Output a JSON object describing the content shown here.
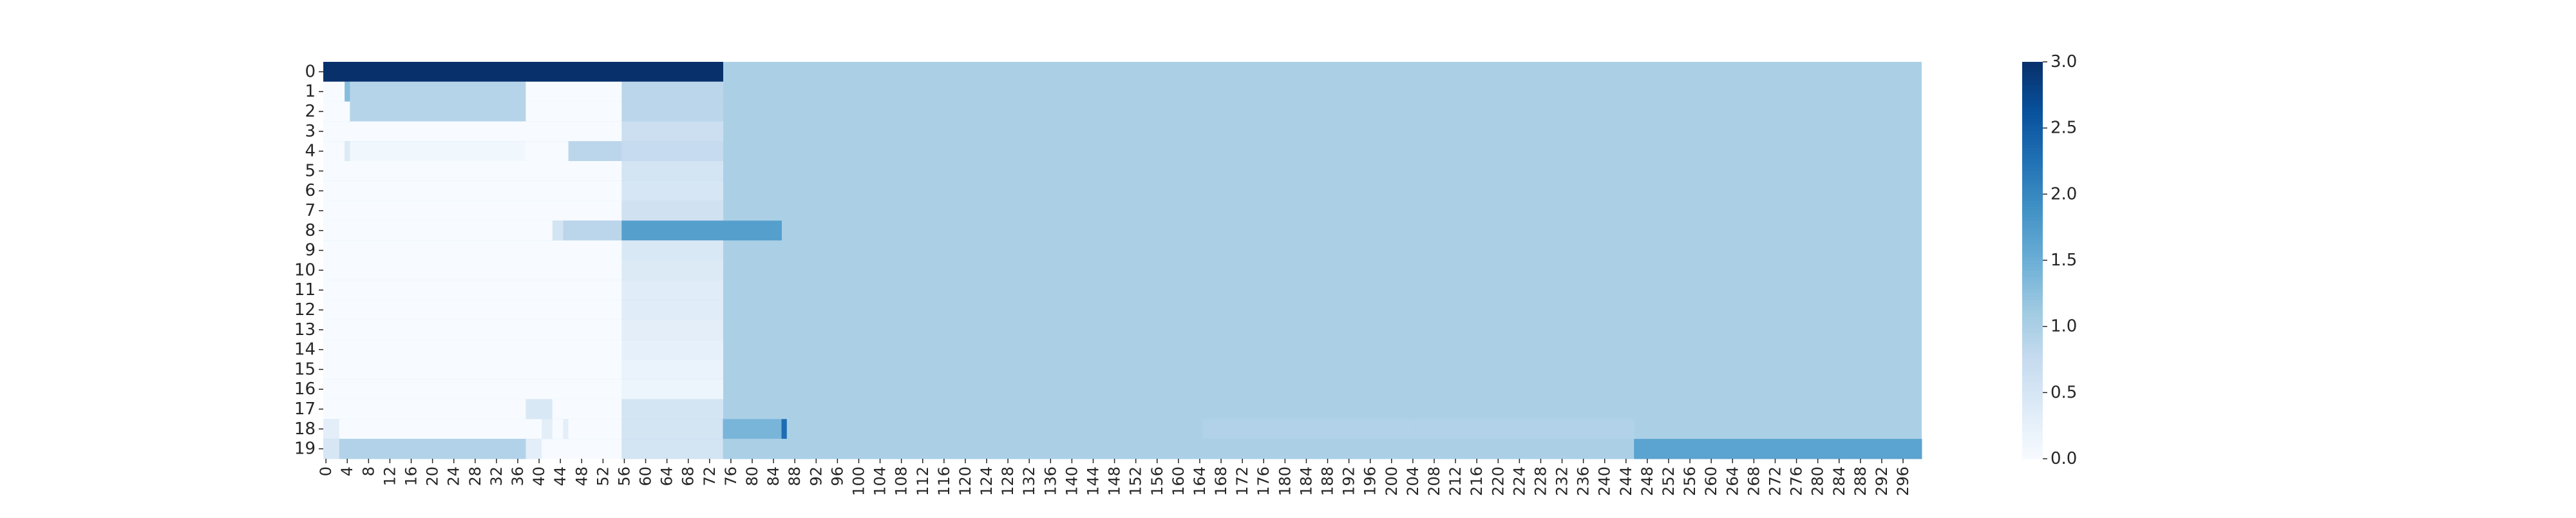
{
  "chart_data": {
    "type": "heatmap",
    "title": "",
    "xlabel": "",
    "ylabel": "",
    "n_cols": 300,
    "y_labels": [
      "0",
      "1",
      "2",
      "3",
      "4",
      "5",
      "6",
      "7",
      "8",
      "9",
      "10",
      "11",
      "12",
      "13",
      "14",
      "15",
      "16",
      "17",
      "18",
      "19"
    ],
    "x_tick_labels": [
      "0",
      "4",
      "8",
      "12",
      "16",
      "20",
      "24",
      "28",
      "32",
      "36",
      "40",
      "44",
      "48",
      "52",
      "56",
      "60",
      "64",
      "68",
      "72",
      "76",
      "80",
      "84",
      "88",
      "92",
      "96",
      "100",
      "104",
      "108",
      "112",
      "116",
      "120",
      "124",
      "128",
      "132",
      "136",
      "140",
      "144",
      "148",
      "152",
      "156",
      "160",
      "164",
      "168",
      "172",
      "176",
      "180",
      "184",
      "188",
      "192",
      "196",
      "200",
      "204",
      "208",
      "212",
      "216",
      "220",
      "224",
      "228",
      "232",
      "236",
      "240",
      "244",
      "248",
      "252",
      "256",
      "260",
      "264",
      "268",
      "272",
      "276",
      "280",
      "284",
      "288",
      "292",
      "296"
    ],
    "x_tick_step": 4,
    "colorbar": {
      "colormap": "Blues",
      "vmin": 0.0,
      "vmax": 3.0,
      "tick_labels": [
        "0.0",
        "0.5",
        "1.0",
        "1.5",
        "2.0",
        "2.5",
        "3.0"
      ]
    },
    "cells": {
      "default_value": 1.0,
      "rows": [
        [
          [
            0,
            74,
            3.0
          ]
        ],
        [
          [
            0,
            3,
            0.0
          ],
          [
            4,
            4,
            1.3
          ],
          [
            5,
            37,
            0.9
          ],
          [
            38,
            55,
            0.0
          ],
          [
            56,
            74,
            0.85
          ]
        ],
        [
          [
            0,
            4,
            0.0
          ],
          [
            5,
            37,
            0.9
          ],
          [
            38,
            55,
            0.0
          ],
          [
            56,
            74,
            0.85
          ]
        ],
        [
          [
            0,
            55,
            0.0
          ],
          [
            56,
            74,
            0.65
          ]
        ],
        [
          [
            0,
            3,
            0.0
          ],
          [
            4,
            4,
            0.4
          ],
          [
            5,
            37,
            0.1
          ],
          [
            38,
            45,
            0.0
          ],
          [
            46,
            55,
            0.85
          ],
          [
            56,
            74,
            0.75
          ]
        ],
        [
          [
            0,
            55,
            0.0
          ],
          [
            56,
            74,
            0.55
          ]
        ],
        [
          [
            0,
            55,
            0.0
          ],
          [
            56,
            74,
            0.5
          ]
        ],
        [
          [
            0,
            55,
            0.0
          ],
          [
            56,
            74,
            0.6
          ]
        ],
        [
          [
            0,
            42,
            0.0
          ],
          [
            43,
            44,
            0.55
          ],
          [
            45,
            55,
            0.85
          ],
          [
            56,
            85,
            1.7
          ]
        ],
        [
          [
            0,
            55,
            0.0
          ],
          [
            56,
            74,
            0.45
          ]
        ],
        [
          [
            0,
            55,
            0.0
          ],
          [
            56,
            74,
            0.4
          ]
        ],
        [
          [
            0,
            55,
            0.0
          ],
          [
            56,
            74,
            0.35
          ]
        ],
        [
          [
            0,
            55,
            0.0
          ],
          [
            56,
            74,
            0.35
          ]
        ],
        [
          [
            0,
            55,
            0.0
          ],
          [
            56,
            74,
            0.3
          ]
        ],
        [
          [
            0,
            55,
            0.0
          ],
          [
            56,
            74,
            0.25
          ]
        ],
        [
          [
            0,
            55,
            0.0
          ],
          [
            56,
            74,
            0.2
          ]
        ],
        [
          [
            0,
            55,
            0.0
          ],
          [
            56,
            74,
            0.15
          ]
        ],
        [
          [
            0,
            37,
            0.0
          ],
          [
            38,
            42,
            0.45
          ],
          [
            43,
            55,
            0.0
          ],
          [
            56,
            74,
            0.55
          ]
        ],
        [
          [
            0,
            2,
            0.3
          ],
          [
            3,
            40,
            0.0
          ],
          [
            41,
            42,
            0.3
          ],
          [
            43,
            44,
            0.0
          ],
          [
            45,
            45,
            0.3
          ],
          [
            46,
            55,
            0.0
          ],
          [
            56,
            74,
            0.55
          ],
          [
            75,
            85,
            1.4
          ],
          [
            86,
            86,
            2.3
          ],
          [
            87,
            164,
            1.0
          ],
          [
            165,
            204,
            0.95
          ],
          [
            205,
            245,
            0.95
          ]
        ],
        [
          [
            0,
            2,
            0.5
          ],
          [
            3,
            37,
            0.95
          ],
          [
            38,
            40,
            0.3
          ],
          [
            41,
            55,
            0.0
          ],
          [
            56,
            74,
            0.55
          ],
          [
            75,
            245,
            1.0
          ],
          [
            246,
            299,
            1.65
          ]
        ]
      ]
    }
  }
}
